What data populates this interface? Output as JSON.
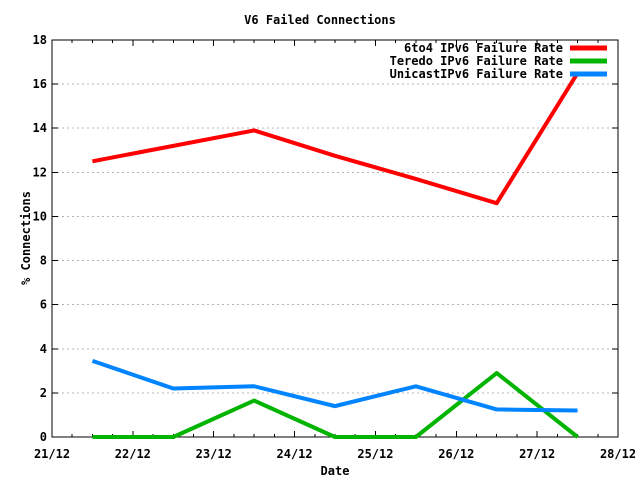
{
  "window": {
    "background": "#ffffff",
    "foreground": "#000000"
  },
  "chart_data": {
    "type": "line",
    "title": "V6 Failed Connections",
    "xlabel": "Date",
    "ylabel": "% Connections",
    "xlim": [
      21,
      28
    ],
    "ylim": [
      0,
      18
    ],
    "y_tick_step": 2,
    "y_tick_labels": [
      "0",
      "2",
      "4",
      "6",
      "8",
      "10",
      "12",
      "14",
      "16",
      "18"
    ],
    "x_tick_labels": [
      "21/12",
      "22/12",
      "23/12",
      "24/12",
      "25/12",
      "26/12",
      "27/12",
      "28/12"
    ],
    "x_minor_tick_step": 0.25,
    "grid": "horizontal dotted lines at each y major tick",
    "grid_color": "#b4b4b4",
    "legend_position": "top-right-inside",
    "x": [
      21.5,
      22.5,
      23.5,
      24.5,
      25.5,
      26.5,
      27.5
    ],
    "series": [
      {
        "name": "6to4 IPv6 Failure Rate",
        "color": "#ff0000",
        "values": [
          12.5,
          13.2,
          13.9,
          12.75,
          11.7,
          10.6,
          16.5
        ]
      },
      {
        "name": "Teredo IPv6 Failure Rate",
        "color": "#00b400",
        "values": [
          0,
          0,
          1.65,
          0,
          0,
          2.9,
          0
        ]
      },
      {
        "name": "UnicastIPv6 Failure Rate",
        "color": "#0084ff",
        "values": [
          3.45,
          2.2,
          2.3,
          1.4,
          2.3,
          1.25,
          1.2
        ]
      }
    ]
  }
}
